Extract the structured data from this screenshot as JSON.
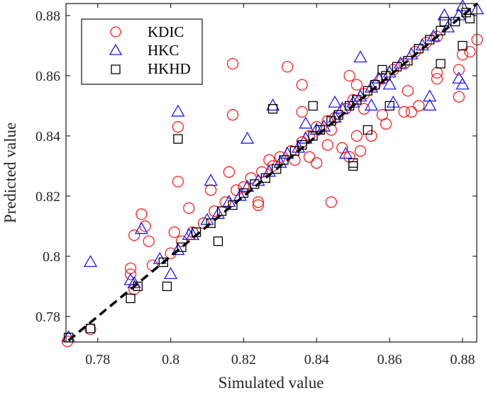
{
  "chart_data": {
    "type": "scatter",
    "title": "",
    "xlabel": "Simulated value",
    "ylabel": "Predicted value",
    "xlim": [
      0.7713,
      0.8839
    ],
    "ylim": [
      0.7715,
      0.884
    ],
    "xticks": [
      0.78,
      0.8,
      0.82,
      0.84,
      0.86,
      0.88
    ],
    "xtick_labels": [
      "0.78",
      "0.8",
      "0.82",
      "0.84",
      "0.86",
      "0.88"
    ],
    "yticks": [
      0.78,
      0.8,
      0.82,
      0.84,
      0.86,
      0.88
    ],
    "ytick_labels": [
      "0.78",
      "0.8",
      "0.82",
      "0.84",
      "0.86",
      "0.88"
    ],
    "grid": false,
    "legend_position": "top-left",
    "reference_line": {
      "style": "dashed",
      "color": "#000000",
      "from": [
        0.772,
        0.772
      ],
      "to": [
        0.884,
        0.884
      ]
    },
    "series": [
      {
        "name": "KDIC",
        "marker": "circle",
        "color": "#ff2020",
        "points": [
          [
            0.817,
            0.864
          ],
          [
            0.832,
            0.863
          ],
          [
            0.817,
            0.847
          ],
          [
            0.802,
            0.843
          ],
          [
            0.802,
            0.8248
          ],
          [
            0.836,
            0.857
          ],
          [
            0.836,
            0.848
          ],
          [
            0.884,
            0.872
          ],
          [
            0.882,
            0.868
          ],
          [
            0.88,
            0.867
          ],
          [
            0.879,
            0.862
          ],
          [
            0.879,
            0.853
          ],
          [
            0.873,
            0.861
          ],
          [
            0.873,
            0.859
          ],
          [
            0.868,
            0.85
          ],
          [
            0.866,
            0.848
          ],
          [
            0.864,
            0.848
          ],
          [
            0.865,
            0.855
          ],
          [
            0.851,
            0.857
          ],
          [
            0.849,
            0.86
          ],
          [
            0.853,
            0.849
          ],
          [
            0.851,
            0.84
          ],
          [
            0.852,
            0.835
          ],
          [
            0.849,
            0.833
          ],
          [
            0.844,
            0.842
          ],
          [
            0.843,
            0.837
          ],
          [
            0.84,
            0.831
          ],
          [
            0.844,
            0.818
          ],
          [
            0.847,
            0.836
          ],
          [
            0.855,
            0.84
          ],
          [
            0.858,
            0.847
          ],
          [
            0.859,
            0.844
          ],
          [
            0.792,
            0.814
          ],
          [
            0.793,
            0.81
          ],
          [
            0.794,
            0.805
          ],
          [
            0.79,
            0.807
          ],
          [
            0.789,
            0.796
          ],
          [
            0.789,
            0.794
          ],
          [
            0.778,
            0.7757
          ],
          [
            0.7717,
            0.7717
          ],
          [
            0.801,
            0.808
          ],
          [
            0.811,
            0.822
          ],
          [
            0.805,
            0.816
          ],
          [
            0.824,
            0.817
          ],
          [
            0.816,
            0.828
          ],
          [
            0.824,
            0.818
          ],
          [
            0.827,
            0.832
          ],
          [
            0.834,
            0.832
          ],
          [
            0.838,
            0.833
          ],
          [
            0.79,
            0.789
          ],
          [
            0.795,
            0.797
          ],
          [
            0.8,
            0.801
          ],
          [
            0.803,
            0.805
          ],
          [
            0.806,
            0.808
          ],
          [
            0.809,
            0.811
          ],
          [
            0.812,
            0.815
          ],
          [
            0.815,
            0.818
          ],
          [
            0.818,
            0.822
          ],
          [
            0.82,
            0.823
          ],
          [
            0.822,
            0.826
          ],
          [
            0.825,
            0.828
          ],
          [
            0.828,
            0.83
          ],
          [
            0.83,
            0.833
          ],
          [
            0.833,
            0.835
          ],
          [
            0.836,
            0.838
          ],
          [
            0.838,
            0.84
          ],
          [
            0.84,
            0.843
          ],
          [
            0.843,
            0.845
          ],
          [
            0.845,
            0.846
          ],
          [
            0.848,
            0.849
          ],
          [
            0.85,
            0.852
          ],
          [
            0.853,
            0.854
          ],
          [
            0.856,
            0.857
          ],
          [
            0.858,
            0.859
          ],
          [
            0.861,
            0.862
          ],
          [
            0.864,
            0.864
          ],
          [
            0.867,
            0.868
          ],
          [
            0.87,
            0.871
          ],
          [
            0.873,
            0.873
          ]
        ]
      },
      {
        "name": "HKC",
        "marker": "triangle",
        "color": "#1a1aff",
        "points": [
          [
            0.802,
            0.848
          ],
          [
            0.778,
            0.798
          ],
          [
            0.792,
            0.809
          ],
          [
            0.772,
            0.773
          ],
          [
            0.789,
            0.792
          ],
          [
            0.8,
            0.794
          ],
          [
            0.828,
            0.85
          ],
          [
            0.821,
            0.839
          ],
          [
            0.852,
            0.866
          ],
          [
            0.875,
            0.88
          ],
          [
            0.88,
            0.883
          ],
          [
            0.884,
            0.882
          ],
          [
            0.88,
            0.857
          ],
          [
            0.879,
            0.859
          ],
          [
            0.871,
            0.853
          ],
          [
            0.871,
            0.85
          ],
          [
            0.86,
            0.857
          ],
          [
            0.861,
            0.851
          ],
          [
            0.855,
            0.85
          ],
          [
            0.845,
            0.851
          ],
          [
            0.837,
            0.844
          ],
          [
            0.848,
            0.834
          ],
          [
            0.811,
            0.825
          ],
          [
            0.805,
            0.807
          ],
          [
            0.79,
            0.791
          ],
          [
            0.797,
            0.799
          ],
          [
            0.802,
            0.802
          ],
          [
            0.806,
            0.807
          ],
          [
            0.81,
            0.812
          ],
          [
            0.813,
            0.814
          ],
          [
            0.816,
            0.818
          ],
          [
            0.819,
            0.82
          ],
          [
            0.821,
            0.823
          ],
          [
            0.824,
            0.825
          ],
          [
            0.827,
            0.828
          ],
          [
            0.83,
            0.831
          ],
          [
            0.832,
            0.834
          ],
          [
            0.835,
            0.836
          ],
          [
            0.837,
            0.839
          ],
          [
            0.84,
            0.842
          ],
          [
            0.842,
            0.843
          ],
          [
            0.845,
            0.846
          ],
          [
            0.847,
            0.849
          ],
          [
            0.85,
            0.851
          ],
          [
            0.852,
            0.853
          ],
          [
            0.855,
            0.856
          ],
          [
            0.857,
            0.859
          ],
          [
            0.86,
            0.861
          ],
          [
            0.863,
            0.864
          ],
          [
            0.866,
            0.867
          ],
          [
            0.869,
            0.87
          ],
          [
            0.872,
            0.873
          ],
          [
            0.876,
            0.876
          ],
          [
            0.879,
            0.88
          ]
        ]
      },
      {
        "name": "HKHD",
        "marker": "square",
        "color": "#000000",
        "points": [
          [
            0.802,
            0.839
          ],
          [
            0.828,
            0.849
          ],
          [
            0.789,
            0.786
          ],
          [
            0.799,
            0.79
          ],
          [
            0.778,
            0.776
          ],
          [
            0.772,
            0.773
          ],
          [
            0.813,
            0.805
          ],
          [
            0.85,
            0.831
          ],
          [
            0.85,
            0.83
          ],
          [
            0.86,
            0.85
          ],
          [
            0.88,
            0.87
          ],
          [
            0.874,
            0.864
          ],
          [
            0.882,
            0.879
          ],
          [
            0.875,
            0.878
          ],
          [
            0.858,
            0.862
          ],
          [
            0.854,
            0.842
          ],
          [
            0.839,
            0.85
          ],
          [
            0.791,
            0.79
          ],
          [
            0.798,
            0.798
          ],
          [
            0.803,
            0.803
          ],
          [
            0.807,
            0.808
          ],
          [
            0.811,
            0.811
          ],
          [
            0.814,
            0.815
          ],
          [
            0.817,
            0.817
          ],
          [
            0.82,
            0.821
          ],
          [
            0.823,
            0.824
          ],
          [
            0.826,
            0.826
          ],
          [
            0.829,
            0.829
          ],
          [
            0.831,
            0.832
          ],
          [
            0.834,
            0.835
          ],
          [
            0.836,
            0.837
          ],
          [
            0.839,
            0.84
          ],
          [
            0.841,
            0.842
          ],
          [
            0.844,
            0.845
          ],
          [
            0.846,
            0.847
          ],
          [
            0.849,
            0.85
          ],
          [
            0.851,
            0.852
          ],
          [
            0.854,
            0.855
          ],
          [
            0.856,
            0.857
          ],
          [
            0.859,
            0.86
          ],
          [
            0.862,
            0.863
          ],
          [
            0.865,
            0.865
          ],
          [
            0.868,
            0.869
          ],
          [
            0.871,
            0.872
          ],
          [
            0.874,
            0.875
          ],
          [
            0.878,
            0.878
          ],
          [
            0.881,
            0.881
          ]
        ]
      }
    ]
  }
}
